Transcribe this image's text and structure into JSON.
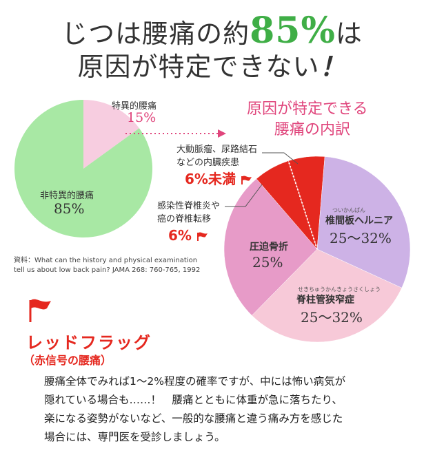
{
  "title": {
    "line1_pre": "じつは腰痛の約",
    "line1_pct": "85%",
    "line1_post": "は",
    "line2": "原因が特定できない",
    "line2_mark": "！"
  },
  "chart_data": [
    {
      "type": "pie",
      "slices": [
        {
          "label": "非特異的腰痛",
          "value_label": "85%",
          "value": 85,
          "color": "#a8e8a4"
        },
        {
          "label": "特異的腰痛",
          "value_label": "15%",
          "value": 15,
          "color": "#f7cde0"
        }
      ]
    },
    {
      "type": "pie",
      "title_line1": "原因が特定できる",
      "title_line2": "腰痛の内訳",
      "slices": [
        {
          "label": "大動脈瘤、尿路結石\nなどの内臓疾患",
          "value_label": "6%未満",
          "value": 6,
          "color": "#e5281f"
        },
        {
          "label": "感染性脊椎炎や\n癌の脊椎転移",
          "value_label": "6%",
          "value": 6,
          "color": "#e5281f"
        },
        {
          "label": "椎間板ヘルニア",
          "ruby": "ついかんばん",
          "value_label": "25～32%",
          "value": 29,
          "color": "#cdb2e6"
        },
        {
          "label": "脊柱管狭窄症",
          "ruby": "せきちゅうかんきょうさくしょう",
          "value_label": "25～32%",
          "value": 29,
          "color": "#f7c9d8"
        },
        {
          "label": "圧迫骨折",
          "value_label": "25%",
          "value": 25,
          "color": "#e79bc8"
        }
      ]
    }
  ],
  "source": {
    "line1": "資料：What can the history and physical examination",
    "line2": "tell us about low back pain?  JAMA 268: 760-765, 1992"
  },
  "red_flag": {
    "title": "レッドフラッグ",
    "subtitle": "（赤信号の腰痛）",
    "icon": "red-flag-icon"
  },
  "body": {
    "line1": "腰痛全体でみれば1～2%程度の確率ですが、中には怖い病気が",
    "line2": "隠れている場合も……！　腰痛とともに体重が急に落ちたり、",
    "line3": "楽になる姿勢がないなど、一般的な腰痛と違う痛み方を感じた",
    "line4": "場合には、専門医を受診しましょう。"
  }
}
